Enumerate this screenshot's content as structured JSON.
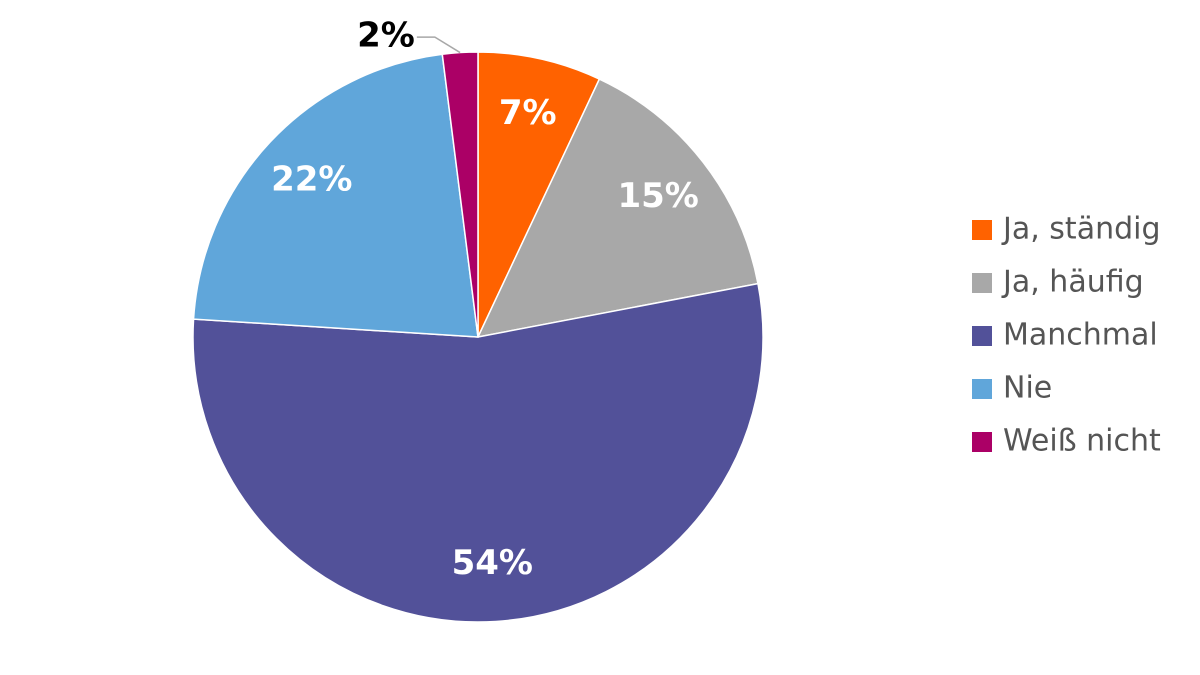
{
  "chart_data": {
    "type": "pie",
    "categories": [
      "Ja, ständig",
      "Ja, häufig",
      "Manchmal",
      "Nie",
      "Weiß nicht"
    ],
    "values": [
      7,
      15,
      54,
      22,
      2
    ],
    "value_labels": [
      "7%",
      "15%",
      "54%",
      "22%",
      "2%"
    ],
    "colors": [
      "#ff6200",
      "#a8a8a8",
      "#525199",
      "#60a6da",
      "#ab0066"
    ]
  }
}
